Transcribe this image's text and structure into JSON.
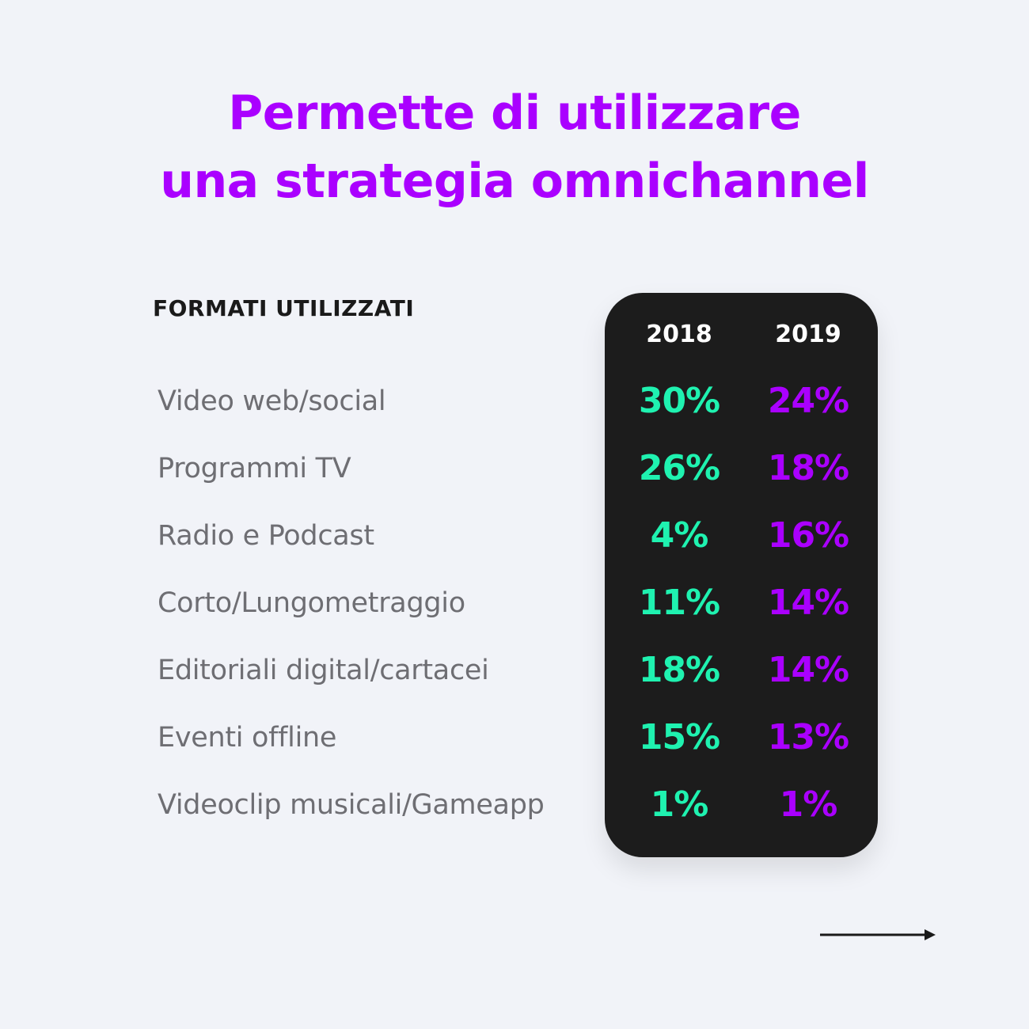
{
  "title": {
    "line1": "Permette di utilizzare",
    "line2": "una strategia omnichannel"
  },
  "section_label": "FORMATI UTILIZZATI",
  "colors": {
    "accent_purple": "#aa00ff",
    "accent_green": "#1ff2b0",
    "panel_bg": "#1c1c1c",
    "page_bg": "#f1f3f8",
    "label_gray": "#6e6e73"
  },
  "nav": {
    "next_icon": "arrow-right-icon"
  },
  "chart_data": {
    "type": "table",
    "columns": [
      "2018",
      "2019"
    ],
    "categories": [
      "Video web/social",
      "Programmi TV",
      "Radio e Podcast",
      "Corto/Lungometraggio",
      "Editoriali digital/cartacei",
      "Eventi offline",
      "Videoclip musicali/Gameapp"
    ],
    "series": [
      {
        "name": "2018",
        "values": [
          30,
          26,
          4,
          11,
          18,
          15,
          1
        ],
        "labels": [
          "30%",
          "26%",
          "4%",
          "11%",
          "18%",
          "15%",
          "1%"
        ]
      },
      {
        "name": "2019",
        "values": [
          24,
          18,
          16,
          14,
          14,
          13,
          1
        ],
        "labels": [
          "24%",
          "18%",
          "16%",
          "14%",
          "14%",
          "13%",
          "1%"
        ]
      }
    ],
    "unit": "%"
  }
}
